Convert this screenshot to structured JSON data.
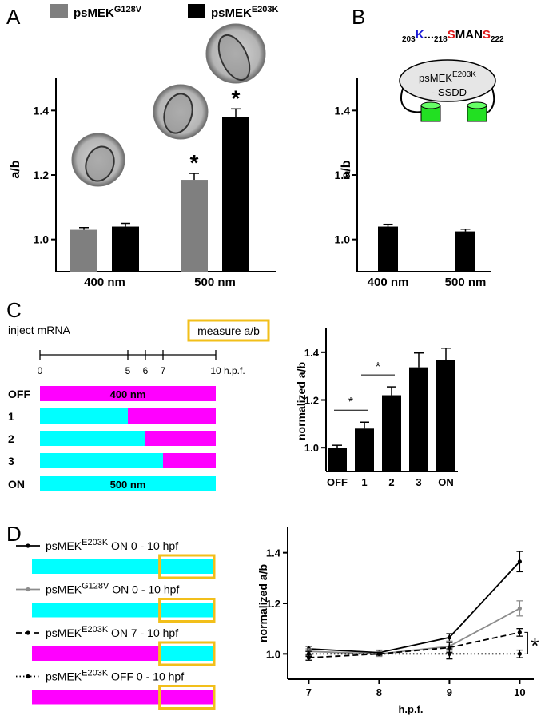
{
  "panel_labels": [
    "A",
    "B",
    "C",
    "D"
  ],
  "chart_data": [
    {
      "type": "bar",
      "y_label": "a/b",
      "categories": [
        "400 nm",
        "500 nm"
      ],
      "series": [
        {
          "name": [
            "psMEK",
            "G128V"
          ],
          "color": "#7f7f7f",
          "values": [
            1.03,
            1.185
          ],
          "errors": [
            0.007,
            0.02
          ],
          "markers": [
            null,
            "*"
          ]
        },
        {
          "name": [
            "psMEK",
            "E203K"
          ],
          "color": "#000000",
          "values": [
            1.04,
            1.38
          ],
          "errors": [
            0.01,
            0.025
          ],
          "markers": [
            null,
            "*"
          ]
        }
      ],
      "ylim": [
        0.9,
        1.5
      ],
      "yticks": [
        {
          "value": 1,
          "label": "1.0"
        },
        1.2,
        1.4
      ]
    },
    {
      "type": "bar",
      "y_label": "a/b",
      "categories": [
        "400 nm",
        "500 nm"
      ],
      "color": "#000000",
      "values": [
        1.04,
        1.025
      ],
      "errors": [
        0.007,
        0.007
      ],
      "ylim": [
        0.9,
        1.5
      ],
      "yticks": [
        {
          "value": 1,
          "label": "1.0"
        },
        1.2,
        1.4
      ],
      "construct": {
        "sequence": [
          {
            "text": "203",
            "color": "#000000",
            "subscript": true
          },
          {
            "text": "K",
            "color": "#1a1ad6"
          },
          {
            "text": "...",
            "color": "#000000"
          },
          {
            "text": "218",
            "color": "#000000",
            "subscript": true
          },
          {
            "text": "S",
            "color": "#e01b1b"
          },
          {
            "text": "MAN",
            "color": "#000000"
          },
          {
            "text": "S",
            "color": "#e01b1b"
          },
          {
            "text": "222",
            "color": "#000000",
            "subscript": true
          }
        ],
        "protein": [
          "psMEK",
          "E203K"
        ],
        "domain": "- SSDD"
      }
    },
    {
      "type": "bar",
      "y_label": "normalized a/b",
      "categories": [
        "OFF",
        "1",
        "2",
        "3",
        "ON"
      ],
      "color": "#000000",
      "values": [
        1.0,
        1.08,
        1.22,
        1.337,
        1.367
      ],
      "errors": [
        0.01,
        0.027,
        0.035,
        0.06,
        0.05
      ],
      "ylim": [
        0.9,
        1.5
      ],
      "yticks": [
        {
          "value": 1,
          "label": "1.0"
        },
        1.2,
        1.4
      ],
      "significance": [
        {
          "from": 0,
          "to": 1,
          "label": "*"
        },
        {
          "from": 1,
          "to": 2,
          "label": "*"
        }
      ]
    },
    {
      "type": "line",
      "y_label": "normalized a/b",
      "x_label": "h.p.f.",
      "x": [
        7,
        8,
        9,
        10
      ],
      "xlim": [
        6.7,
        10.2
      ],
      "xticks": [
        7,
        8,
        9,
        10
      ],
      "ylim": [
        0.9,
        1.5
      ],
      "yticks": [
        {
          "value": 1,
          "label": "1.0"
        },
        1.2,
        1.4
      ],
      "measure_window": [
        7,
        10
      ],
      "series": [
        {
          "name": [
            "psMEK",
            "E203K",
            " ON 0 - 10 hpf"
          ],
          "color": "#000000",
          "dash": "solid",
          "values": [
            1.02,
            1.005,
            1.065,
            1.365
          ],
          "errors": [
            0.01,
            0.01,
            0.015,
            0.04
          ],
          "schedule": [
            {
              "color": "#00ffff",
              "start": 0,
              "end": 10
            }
          ]
        },
        {
          "name": [
            "psMEK",
            "G128V",
            " ON 0 - 10 hpf"
          ],
          "color": "#8c8c8c",
          "dash": "solid",
          "values": [
            1.01,
            1.0,
            1.03,
            1.18
          ],
          "errors": [
            0.01,
            0.01,
            0.02,
            0.03
          ],
          "schedule": [
            {
              "color": "#00ffff",
              "start": 0,
              "end": 10
            }
          ]
        },
        {
          "name": [
            "psMEK",
            "E203K",
            " ON 7 - 10 hpf"
          ],
          "color": "#000000",
          "dash": "dashed",
          "values": [
            0.985,
            1.0,
            1.025,
            1.085
          ],
          "errors": [
            0.01,
            0.005,
            0.02,
            0.015
          ],
          "schedule": [
            {
              "color": "#ff00ff",
              "start": 0,
              "end": 7
            },
            {
              "color": "#00ffff",
              "start": 7,
              "end": 10
            }
          ]
        },
        {
          "name": [
            "psMEK",
            "E203K",
            " OFF 0 - 10 hpf"
          ],
          "color": "#000000",
          "dash": "dotted",
          "values": [
            1.0,
            1.0,
            1.0,
            1.0
          ],
          "errors": [
            0.01,
            0.005,
            0.02,
            0.015
          ],
          "schedule": [
            {
              "color": "#ff00ff",
              "start": 0,
              "end": 10
            }
          ]
        }
      ],
      "significance": [
        {
          "from_series": 2,
          "to_series": 3,
          "at": 3,
          "label": "*"
        }
      ]
    }
  ],
  "panel_c_protocol": {
    "start_label": "inject mRNA",
    "end_label": "measure a/b",
    "timeline_ticks": [
      0,
      5,
      6,
      7,
      10
    ],
    "timeline_unit": "h.p.f.",
    "rows": [
      {
        "label": "OFF",
        "segments": [
          {
            "color": "#ff00ff",
            "start": 0,
            "end": 10,
            "text": "400 nm"
          }
        ]
      },
      {
        "label": "1",
        "segments": [
          {
            "color": "#00ffff",
            "start": 0,
            "end": 5
          },
          {
            "color": "#ff00ff",
            "start": 5,
            "end": 10
          }
        ]
      },
      {
        "label": "2",
        "segments": [
          {
            "color": "#00ffff",
            "start": 0,
            "end": 6
          },
          {
            "color": "#ff00ff",
            "start": 6,
            "end": 10
          }
        ]
      },
      {
        "label": "3",
        "segments": [
          {
            "color": "#00ffff",
            "start": 0,
            "end": 7
          },
          {
            "color": "#ff00ff",
            "start": 7,
            "end": 10
          }
        ]
      },
      {
        "label": "ON",
        "segments": [
          {
            "color": "#00ffff",
            "start": 0,
            "end": 10,
            "text": "500 nm"
          }
        ]
      }
    ]
  }
}
